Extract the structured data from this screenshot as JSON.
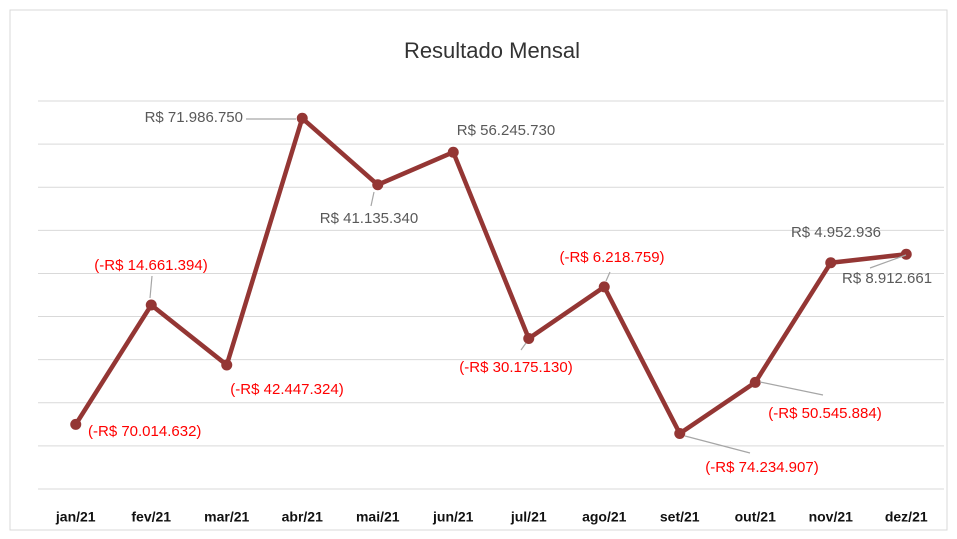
{
  "chart_data": {
    "type": "line",
    "title": "Resultado Mensal",
    "categories": [
      "jan/21",
      "fev/21",
      "mar/21",
      "abr/21",
      "mai/21",
      "jun/21",
      "jul/21",
      "ago/21",
      "set/21",
      "out/21",
      "nov/21",
      "dez/21"
    ],
    "series": [
      {
        "name": "Resultado",
        "color": "#943634",
        "values": [
          -70014632,
          -14661394,
          -42447324,
          71986750,
          41135340,
          56245730,
          -30175130,
          -6218759,
          -74234907,
          -50545884,
          4952936,
          8912661
        ],
        "value_labels": [
          "(-R$ 70.014.632)",
          "(-R$ 14.661.394)",
          "(-R$ 42.447.324)",
          "R$ 71.986.750",
          "R$ 41.135.340",
          "R$ 56.245.730",
          "(-R$ 30.175.130)",
          "(-R$ 6.218.759)",
          "(-R$ 74.234.907)",
          "(-R$ 50.545.884)",
          "R$ 4.952.936",
          "R$ 8.912.661"
        ]
      }
    ],
    "ylim": [
      -100000000,
      80000000
    ],
    "yticks": [
      -100000000,
      -80000000,
      -60000000,
      -40000000,
      -20000000,
      0,
      20000000,
      40000000,
      60000000,
      80000000
    ],
    "grid": true,
    "positive_label_color": "#595959",
    "negative_label_color": "#ff0000"
  }
}
